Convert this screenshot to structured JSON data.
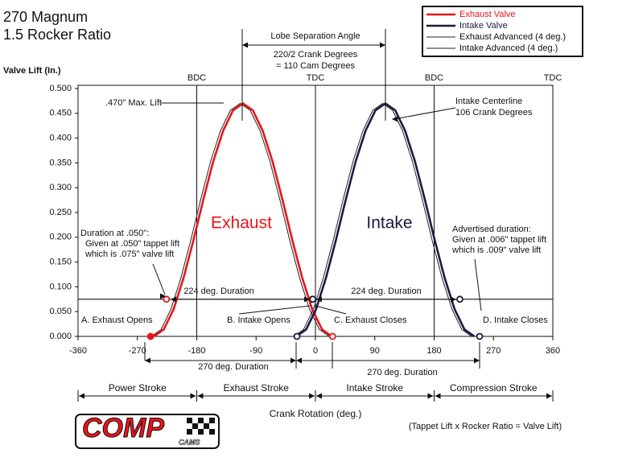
{
  "chart_data": {
    "type": "line",
    "title": "270 Magnum",
    "subtitle": "1.5 Rocker Ratio",
    "y_label": "Valve Lift (In.)",
    "x_label": "Crank Rotation (deg.)",
    "xlim": [
      -360,
      360
    ],
    "xticks": [
      -360,
      -270,
      -180,
      -90,
      0,
      90,
      180,
      270,
      360
    ],
    "ylim": [
      0,
      0.5
    ],
    "yticks": [
      {
        "value": 0,
        "label": "0.000"
      },
      {
        "value": 0.05,
        "label": "0.050"
      },
      {
        "value": 0.1,
        "label": "0.100"
      },
      {
        "value": 0.15,
        "label": "0.150"
      },
      {
        "value": 0.2,
        "label": "0.200"
      },
      {
        "value": 0.25,
        "label": "0.250"
      },
      {
        "value": 0.3,
        "label": "0.300"
      },
      {
        "value": 0.35,
        "label": "0.350"
      },
      {
        "value": 0.4,
        "label": "0.400"
      },
      {
        "value": 0.45,
        "label": "0.450"
      },
      {
        "value": 0.5,
        "label": "0.500"
      }
    ],
    "legend": "upper right",
    "series": [
      {
        "name": "Exhaust Valve",
        "color": "#e8141b",
        "x": [
          -245,
          -230,
          -215,
          -200,
          -185,
          -170,
          -155,
          -140,
          -125,
          -110,
          -95,
          -80,
          -65,
          -50,
          -35,
          -20,
          -5,
          10,
          25
        ],
        "values": [
          0,
          0.014,
          0.055,
          0.118,
          0.194,
          0.276,
          0.353,
          0.415,
          0.456,
          0.47,
          0.456,
          0.415,
          0.353,
          0.276,
          0.194,
          0.118,
          0.055,
          0.014,
          0
        ]
      },
      {
        "name": "Intake Valve",
        "color": "#1a1a40",
        "x": [
          -29,
          -14,
          1,
          16,
          31,
          46,
          61,
          76,
          91,
          106,
          121,
          136,
          151,
          166,
          181,
          196,
          211,
          226,
          241
        ],
        "values": [
          0,
          0.014,
          0.055,
          0.118,
          0.194,
          0.276,
          0.353,
          0.415,
          0.456,
          0.47,
          0.456,
          0.415,
          0.353,
          0.276,
          0.194,
          0.118,
          0.055,
          0.014,
          0
        ]
      },
      {
        "name": "Exhaust Advanced (4 deg.)",
        "color": "#222222",
        "x": [
          -249,
          -234,
          -219,
          -204,
          -189,
          -174,
          -159,
          -144,
          -129,
          -114,
          -99,
          -84,
          -69,
          -54,
          -39,
          -24,
          -9,
          6,
          21
        ],
        "values": [
          0,
          0.014,
          0.055,
          0.118,
          0.194,
          0.276,
          0.353,
          0.415,
          0.456,
          0.47,
          0.456,
          0.415,
          0.353,
          0.276,
          0.194,
          0.118,
          0.055,
          0.014,
          0
        ]
      },
      {
        "name": "Intake Advanced (4 deg.)",
        "color": "#222222",
        "x": [
          -33,
          -18,
          -3,
          12,
          27,
          42,
          57,
          72,
          87,
          102,
          117,
          132,
          147,
          162,
          177,
          192,
          207,
          222,
          237
        ],
        "values": [
          0,
          0.014,
          0.055,
          0.118,
          0.194,
          0.276,
          0.353,
          0.415,
          0.456,
          0.47,
          0.456,
          0.415,
          0.353,
          0.276,
          0.194,
          0.118,
          0.055,
          0.014,
          0
        ]
      }
    ],
    "reference_lines": [
      0.075
    ],
    "markers": {
      "x": [
        -250,
        -226,
        -5,
        -4,
        26,
        -28,
        219,
        249
      ],
      "y": [
        0,
        0.075,
        0.075,
        0.075,
        0,
        0,
        0.075,
        0
      ],
      "colors": [
        "#e8141b",
        "#e8141b",
        "#e8141b",
        "#1a1a40",
        "#e8141b",
        "#1a1a40",
        "#1a1a40",
        "#1a1a40"
      ]
    },
    "top_labels": {
      "x": [
        -180,
        0,
        180,
        360
      ],
      "labels": [
        "BDC",
        "TDC",
        "BDC",
        "TDC"
      ]
    },
    "annotations": [
      "Lobe Separation Angle",
      "220/2 Crank Degrees",
      "= 110 Cam Degrees",
      ".470\" Max. Lift",
      "Intake Centerline",
      "106 Crank Degrees",
      "Exhaust",
      "Intake",
      "Duration at .050\":",
      "Given at .050\" tappet lift",
      "which is .075\" valve lift",
      "Advertised duration:",
      "Given at .006\" tappet lift",
      "which is .009\" valve lift",
      "A. Exhaust Opens",
      "B. Intake Opens",
      "C. Exhaust Closes",
      "D. Intake Closes",
      "224 deg. Duration",
      "224 deg. Duration",
      "270 deg. Duration",
      "270 deg. Duration"
    ],
    "strokes": [
      "Power Stroke",
      "Exhaust Stroke",
      "Intake Stroke",
      "Compression Stroke"
    ],
    "formula": "(Tappet Lift  x  Rocker Ratio  =  Valve Lift)",
    "logo": {
      "text": "COMP",
      "subtext": "CAMS"
    }
  }
}
